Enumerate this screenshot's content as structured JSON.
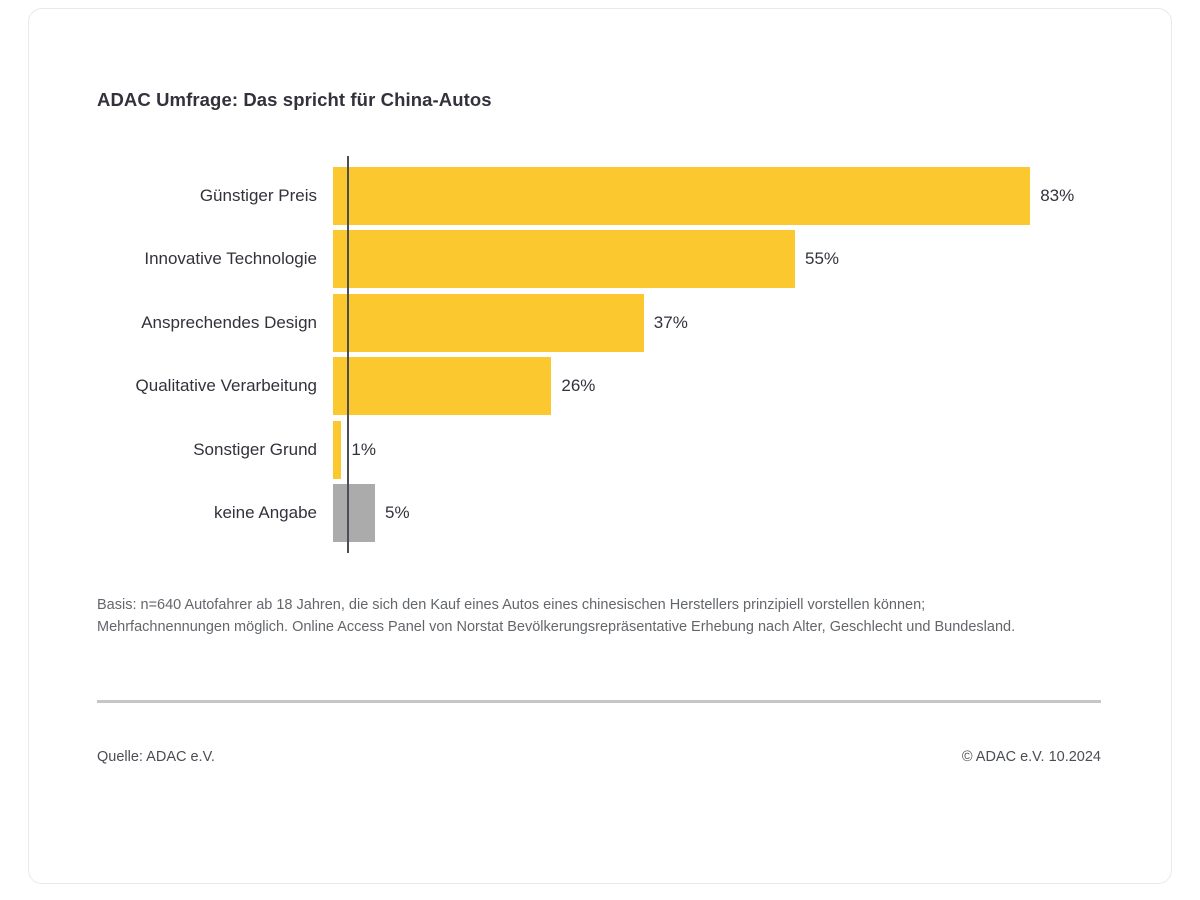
{
  "page": {
    "title": "ADAC Umfrage: Das spricht für China-Autos",
    "basis_note": "Basis: n=640 Autofahrer ab 18 Jahren, die sich den Kauf eines Autos eines chinesischen Herstellers prinzipiell vorstellen können; Mehrfachnennungen möglich. Online Access Panel von Norstat Bevölkerungsrepräsentative Erhebung nach Alter, Geschlecht und Bundesland.",
    "source_left": "Quelle: ADAC e.V.",
    "source_right": "© ADAC e.V. 10.2024"
  },
  "colors": {
    "bar_yellow": "#FBC82F",
    "bar_gray": "#ABABAB",
    "axis": "#4D4D55",
    "heading_text": "#32323C",
    "note_text": "#63666A",
    "separator": "#C6C6C6",
    "card_border": "#E9E9E9"
  },
  "chart_data": {
    "type": "bar",
    "orientation": "horizontal",
    "title": "ADAC Umfrage: Das spricht für China-Autos",
    "categories": [
      "Günstiger Preis",
      "Innovative Technologie",
      "Ansprechendes Design",
      "Qualitative Verarbeitung",
      "Sonstiger Grund",
      "keine Angabe"
    ],
    "values": [
      83,
      55,
      37,
      26,
      1,
      5
    ],
    "value_labels": [
      "83%",
      "55%",
      "37%",
      "26%",
      "1%",
      "5%"
    ],
    "bar_colors": [
      "#FBC82F",
      "#FBC82F",
      "#FBC82F",
      "#FBC82F",
      "#FBC82F",
      "#ABABAB"
    ],
    "unit": "%",
    "xlim": [
      0,
      100
    ],
    "grid": false,
    "legend": false,
    "value_label_position": "outside-right"
  }
}
